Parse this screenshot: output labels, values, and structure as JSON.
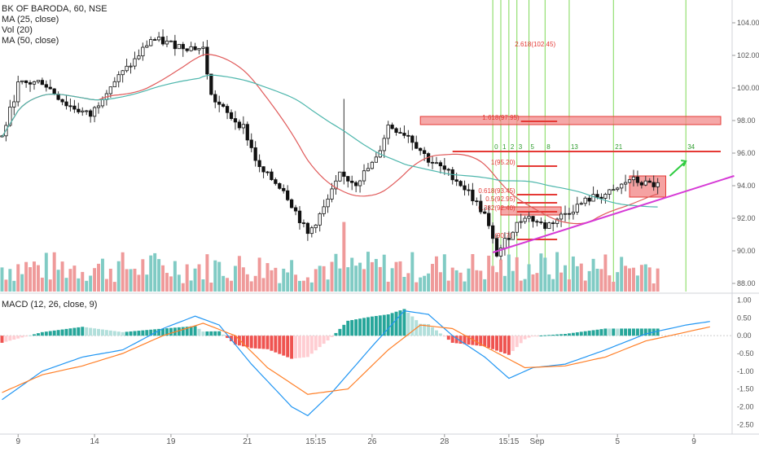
{
  "header": {
    "title": "BK OF BARODA, 60, NSE",
    "study_ma25": "MA (25, close)",
    "study_vol": "Vol (20)",
    "study_ma50": "MA (50, close)",
    "macd_label": "MACD (12, 26, close, 9)"
  },
  "colors": {
    "up": "#26a69a",
    "down": "#111111",
    "bear_volume": "#ef9a9a",
    "bull_volume": "#80cbc4",
    "ma25": "#e05a5a",
    "ma50": "#4db6ac",
    "trendline": "#d63ad6",
    "fib_line": "#e53935",
    "fib_box_fill": "#f28b8b",
    "time_line": "#7ed957",
    "arrow": "#2ecc40",
    "macd_line": "#2196f3",
    "signal_line": "#ff7f27",
    "hist_up_strong": "#26a69a",
    "hist_up_weak": "#b2dfdb",
    "hist_down_strong": "#ef5350",
    "hist_down_weak": "#ffcdd2"
  },
  "chart_data": [
    {
      "type": "candlestick",
      "title": "BK OF BARODA, 60, NSE",
      "x_tick_labels": [
        "9",
        "14",
        "19",
        "21",
        "15:15",
        "26",
        "28",
        "15:15",
        "Sep",
        "5",
        "9"
      ],
      "y_tick_labels": [
        "88.00",
        "90.00",
        "92.00",
        "94.00",
        "96.00",
        "98.00",
        "100.00",
        "102.00",
        "104.00"
      ],
      "ylim": [
        87.5,
        105
      ],
      "grid": false,
      "bars_approx": 182,
      "series": [
        {
          "name": "MA (25, close)"
        },
        {
          "name": "MA (50, close)"
        }
      ],
      "price_path": [
        {
          "bar": 0,
          "price": 97.0
        },
        {
          "bar": 4,
          "price": 100.2
        },
        {
          "bar": 10,
          "price": 100.4
        },
        {
          "bar": 16,
          "price": 99.0
        },
        {
          "bar": 22,
          "price": 98.3
        },
        {
          "bar": 26,
          "price": 99.9
        },
        {
          "bar": 33,
          "price": 101.7
        },
        {
          "bar": 37,
          "price": 103.0
        },
        {
          "bar": 44,
          "price": 102.6
        },
        {
          "bar": 50,
          "price": 102.4
        },
        {
          "bar": 52,
          "price": 99.5
        },
        {
          "bar": 56,
          "price": 98.4
        },
        {
          "bar": 60,
          "price": 97.6
        },
        {
          "bar": 64,
          "price": 95.0
        },
        {
          "bar": 70,
          "price": 93.8
        },
        {
          "bar": 76,
          "price": 91.0
        },
        {
          "bar": 80,
          "price": 92.6
        },
        {
          "bar": 84,
          "price": 94.6
        },
        {
          "bar": 88,
          "price": 94.2
        },
        {
          "bar": 93,
          "price": 95.6
        },
        {
          "bar": 96,
          "price": 97.7
        },
        {
          "bar": 101,
          "price": 97.1
        },
        {
          "bar": 106,
          "price": 95.6
        },
        {
          "bar": 112,
          "price": 94.6
        },
        {
          "bar": 116,
          "price": 93.6
        },
        {
          "bar": 120,
          "price": 92.2
        },
        {
          "bar": 123,
          "price": 89.8
        },
        {
          "bar": 127,
          "price": 91.3
        },
        {
          "bar": 130,
          "price": 92.2
        },
        {
          "bar": 135,
          "price": 91.5
        },
        {
          "bar": 140,
          "price": 92.3
        },
        {
          "bar": 146,
          "price": 93.2
        },
        {
          "bar": 152,
          "price": 93.6
        },
        {
          "bar": 156,
          "price": 94.4
        },
        {
          "bar": 160,
          "price": 94.1
        },
        {
          "bar": 164,
          "price": 94.0
        }
      ],
      "annotations": {
        "fib_levels": [
          {
            "label": "2.618(102.45)",
            "value": 102.45
          },
          {
            "label": "1.618(97.95)",
            "value": 97.95
          },
          {
            "label": "1(95.20)",
            "value": 95.2
          },
          {
            "label": "0.618(93.45)",
            "value": 93.45
          },
          {
            "label": "0.5(92.95)",
            "value": 92.95
          },
          {
            "label": "0.382(92.40)",
            "value": 92.4
          },
          {
            "label": "0(90.70)",
            "value": 90.7
          }
        ],
        "resistance_level": 96.1,
        "fib_time_labels": [
          "0",
          "1",
          "2",
          "3",
          "5",
          "8",
          "13",
          "21",
          "34"
        ],
        "consolidation_box": {
          "top": 94.6,
          "bottom": 93.3
        },
        "trendline": [
          {
            "bar": 122,
            "price": 89.9
          },
          {
            "bar": 182,
            "price": 94.6
          }
        ]
      }
    },
    {
      "type": "bar",
      "title": "Vol (20)",
      "note": "volume histogram overlaid at bottom of price pane"
    },
    {
      "type": "macd",
      "title": "MACD (12, 26, close, 9)",
      "y_tick_labels": [
        "1.00",
        "0.50",
        "0.00",
        "-0.50",
        "-1.00",
        "-1.50",
        "-2.00",
        "-2.50"
      ],
      "ylim": [
        -2.7,
        1.15
      ],
      "macd_path": [
        {
          "bar": 0,
          "value": -1.8
        },
        {
          "bar": 10,
          "value": -1.0
        },
        {
          "bar": 20,
          "value": -0.6
        },
        {
          "bar": 30,
          "value": -0.4
        },
        {
          "bar": 40,
          "value": 0.2
        },
        {
          "bar": 48,
          "value": 0.55
        },
        {
          "bar": 54,
          "value": 0.3
        },
        {
          "bar": 62,
          "value": -0.8
        },
        {
          "bar": 72,
          "value": -2.0
        },
        {
          "bar": 76,
          "value": -2.25
        },
        {
          "bar": 82,
          "value": -1.6
        },
        {
          "bar": 92,
          "value": -0.3
        },
        {
          "bar": 100,
          "value": 0.7
        },
        {
          "bar": 106,
          "value": 0.6
        },
        {
          "bar": 112,
          "value": 0.0
        },
        {
          "bar": 120,
          "value": -0.6
        },
        {
          "bar": 126,
          "value": -1.2
        },
        {
          "bar": 132,
          "value": -0.9
        },
        {
          "bar": 140,
          "value": -0.8
        },
        {
          "bar": 150,
          "value": -0.4
        },
        {
          "bar": 160,
          "value": 0.05
        },
        {
          "bar": 170,
          "value": 0.3
        },
        {
          "bar": 176,
          "value": 0.4
        }
      ],
      "signal_path": [
        {
          "bar": 0,
          "value": -1.6
        },
        {
          "bar": 10,
          "value": -1.1
        },
        {
          "bar": 20,
          "value": -0.85
        },
        {
          "bar": 30,
          "value": -0.5
        },
        {
          "bar": 40,
          "value": 0.0
        },
        {
          "bar": 50,
          "value": 0.35
        },
        {
          "bar": 58,
          "value": 0.0
        },
        {
          "bar": 66,
          "value": -0.9
        },
        {
          "bar": 76,
          "value": -1.65
        },
        {
          "bar": 86,
          "value": -1.5
        },
        {
          "bar": 96,
          "value": -0.4
        },
        {
          "bar": 104,
          "value": 0.3
        },
        {
          "bar": 112,
          "value": 0.2
        },
        {
          "bar": 120,
          "value": -0.3
        },
        {
          "bar": 130,
          "value": -0.9
        },
        {
          "bar": 140,
          "value": -0.85
        },
        {
          "bar": 150,
          "value": -0.6
        },
        {
          "bar": 160,
          "value": -0.15
        },
        {
          "bar": 170,
          "value": 0.1
        },
        {
          "bar": 176,
          "value": 0.25
        }
      ]
    }
  ]
}
